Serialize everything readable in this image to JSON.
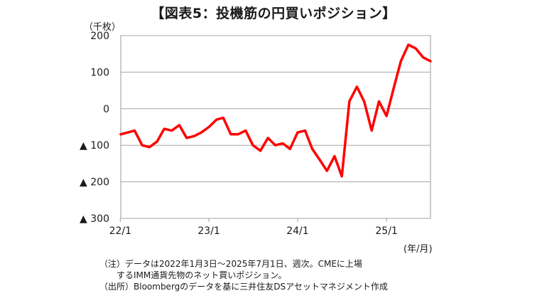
{
  "title": "【図表5：投機筋の円買いポジション】",
  "unit_label": "（千枚）",
  "x_unit_label": "(年/月)",
  "notes": [
    "（注）データは2022年1月3日～2025年7月1日、週次。CMEに上場",
    "　　するIMM通貨先物のネット買いポジション。",
    "（出所）Bloombergのデータを基に三井住友DSアセットマネジメント作成"
  ],
  "chart_data": {
    "type": "line",
    "title": "【図表5：投機筋の円買いポジション】",
    "ylabel": "（千枚）",
    "xlabel": "(年/月)",
    "ylim": [
      -300,
      200
    ],
    "y_ticks": [
      200,
      100,
      0,
      -100,
      -200,
      -300
    ],
    "y_tick_labels": [
      "200",
      "100",
      "0",
      "▲ 100",
      "▲ 200",
      "▲ 300"
    ],
    "x_ticks": [
      "22/1",
      "23/1",
      "24/1",
      "25/1"
    ],
    "x_range": [
      "2022-01-03",
      "2025-07-01"
    ],
    "grid": true,
    "color": "#ff0000",
    "series": [
      {
        "x": [
          "2022-01",
          "2022-02",
          "2022-03",
          "2022-04",
          "2022-05",
          "2022-06",
          "2022-07",
          "2022-08",
          "2022-09",
          "2022-10",
          "2022-11",
          "2022-12",
          "2023-01",
          "2023-02",
          "2023-03",
          "2023-04",
          "2023-05",
          "2023-06",
          "2023-07",
          "2023-08",
          "2023-09",
          "2023-10",
          "2023-11",
          "2023-12",
          "2024-01",
          "2024-02",
          "2024-03",
          "2024-04",
          "2024-05",
          "2024-06",
          "2024-07",
          "2024-08",
          "2024-09",
          "2024-10",
          "2024-11",
          "2024-12",
          "2025-01",
          "2025-02",
          "2025-03",
          "2025-04",
          "2025-05",
          "2025-06",
          "2025-07"
        ],
        "values": [
          -70,
          -65,
          -60,
          -100,
          -105,
          -90,
          -55,
          -60,
          -45,
          -80,
          -75,
          -65,
          -50,
          -30,
          -25,
          -70,
          -70,
          -60,
          -100,
          -115,
          -80,
          -100,
          -95,
          -110,
          -65,
          -60,
          -110,
          -140,
          -170,
          -130,
          -185,
          20,
          60,
          20,
          -60,
          20,
          -20,
          60,
          130,
          175,
          165,
          140,
          130
        ]
      }
    ]
  }
}
